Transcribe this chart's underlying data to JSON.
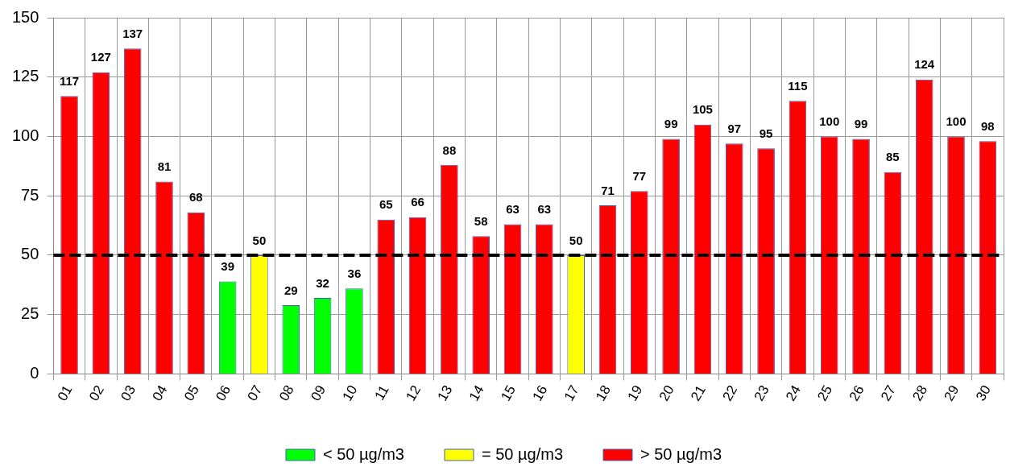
{
  "chart_data": {
    "type": "bar",
    "categories": [
      "01",
      "02",
      "03",
      "04",
      "05",
      "06",
      "07",
      "08",
      "09",
      "10",
      "11",
      "12",
      "13",
      "14",
      "15",
      "16",
      "17",
      "18",
      "19",
      "20",
      "21",
      "22",
      "23",
      "24",
      "25",
      "26",
      "27",
      "28",
      "29",
      "30"
    ],
    "series": [
      {
        "name": "< 50 µg/m3",
        "color": "#00ff00",
        "values": [
          null,
          null,
          null,
          null,
          null,
          39,
          null,
          29,
          32,
          36,
          null,
          null,
          null,
          null,
          null,
          null,
          null,
          null,
          null,
          null,
          null,
          null,
          null,
          null,
          null,
          null,
          null,
          null,
          null,
          null
        ]
      },
      {
        "name": "= 50 µg/m3",
        "color": "#ffff00",
        "values": [
          null,
          null,
          null,
          null,
          null,
          null,
          50,
          null,
          null,
          null,
          null,
          null,
          null,
          null,
          null,
          null,
          50,
          null,
          null,
          null,
          null,
          null,
          null,
          null,
          null,
          null,
          null,
          null,
          null,
          null
        ]
      },
      {
        "name": "> 50 µg/m3",
        "color": "#ff0000",
        "values": [
          117,
          127,
          137,
          81,
          68,
          null,
          null,
          null,
          null,
          null,
          65,
          66,
          88,
          58,
          63,
          63,
          null,
          71,
          77,
          99,
          105,
          97,
          95,
          115,
          100,
          99,
          85,
          124,
          100,
          98
        ]
      }
    ],
    "ylim": [
      0,
      150
    ],
    "yticks": [
      0,
      25,
      50,
      75,
      100,
      125,
      150
    ],
    "grid": true,
    "legend": "bottom",
    "data_labels": true,
    "ref_lines": [
      {
        "axis": "y",
        "value": 50,
        "color": "#000000",
        "line_style": "dashed"
      }
    ]
  }
}
